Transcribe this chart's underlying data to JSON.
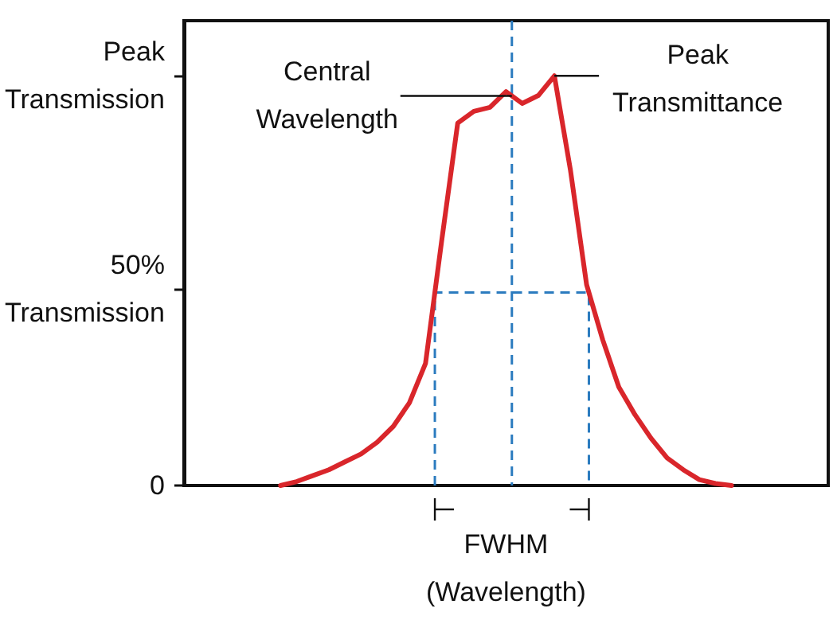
{
  "chart_data": {
    "type": "line",
    "xlabel": "FWHM\n(Wavelength)",
    "ylim": [
      0,
      118
    ],
    "categories": [
      null,
      null,
      null,
      null,
      null,
      null,
      null,
      null,
      null,
      null,
      null,
      null,
      null,
      null,
      null,
      null,
      null,
      null,
      null,
      null,
      null,
      null,
      null,
      null,
      null,
      null,
      null,
      null,
      null,
      null,
      null,
      null,
      null,
      null,
      null,
      null,
      null,
      null,
      null,
      null,
      null
    ],
    "yticks": [
      0,
      {
        "value": 50,
        "label": "50%\nTransmission"
      },
      {
        "value": 104,
        "label": "Peak\nTransmission"
      }
    ],
    "tick_labels": "y",
    "grid": false,
    "marker": "none",
    "line_style": "solid",
    "series": [
      {
        "color": "#d9262b",
        "values": [
          null,
          null,
          null,
          null,
          null,
          null,
          0,
          1,
          2.5,
          4,
          6,
          8,
          11,
          15,
          21,
          31,
          62,
          92,
          95,
          96,
          100,
          97,
          99,
          104,
          80,
          51,
          37,
          25,
          18,
          12,
          7,
          4,
          1.5,
          0.5,
          0,
          null,
          null,
          null,
          null,
          null,
          null
        ]
      }
    ],
    "ref_lines": [
      {
        "axis": "y",
        "value": 49,
        "label": null,
        "color": "#2b7bbf",
        "line_style": "dashed"
      }
    ],
    "annotations": [
      "Central\nWavelength",
      "Peak\nTransmittance"
    ]
  }
}
